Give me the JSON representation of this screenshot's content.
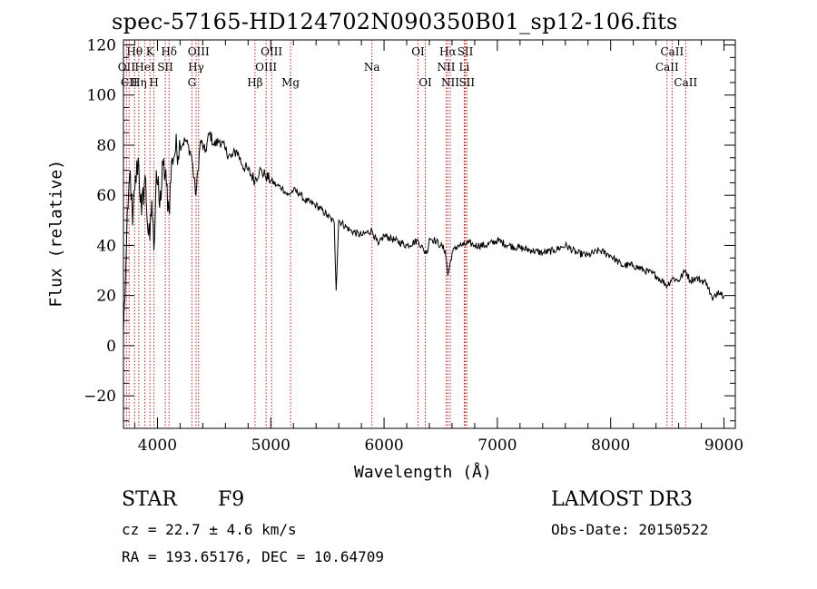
{
  "chart_data": {
    "type": "line",
    "title": "spec-57165-HD124702N090350B01_sp12-106.fits",
    "xlabel": "Wavelength (Å)",
    "ylabel": "Flux (relative)",
    "xlim": [
      3700,
      9100
    ],
    "ylim": [
      -33,
      122
    ],
    "xticks": [
      4000,
      5000,
      6000,
      7000,
      8000,
      9000
    ],
    "xtick_labels": [
      "4000",
      "5000",
      "6000",
      "7000",
      "8000",
      "9000"
    ],
    "yticks": [
      -20,
      0,
      20,
      40,
      60,
      80,
      100,
      120
    ],
    "ytick_labels": [
      "−20",
      "0",
      "20",
      "40",
      "60",
      "80",
      "100",
      "120"
    ],
    "series": [
      {
        "name": "flux",
        "color": "#000000",
        "x": [
          3700,
          3720,
          3740,
          3760,
          3780,
          3800,
          3830,
          3860,
          3890,
          3920,
          3933,
          3950,
          3968,
          3990,
          4020,
          4050,
          4080,
          4101,
          4130,
          4160,
          4200,
          4250,
          4300,
          4340,
          4380,
          4420,
          4460,
          4500,
          4550,
          4600,
          4650,
          4700,
          4750,
          4800,
          4861,
          4900,
          4950,
          5000,
          5050,
          5100,
          5150,
          5200,
          5250,
          5300,
          5400,
          5500,
          5560,
          5577,
          5600,
          5700,
          5800,
          5893,
          5950,
          6000,
          6100,
          6200,
          6300,
          6350,
          6380,
          6400,
          6450,
          6500,
          6540,
          6563,
          6600,
          6650,
          6700,
          6750,
          6800,
          6900,
          7000,
          7100,
          7200,
          7300,
          7400,
          7500,
          7600,
          7700,
          7800,
          7900,
          8000,
          8050,
          8100,
          8200,
          8300,
          8400,
          8450,
          8500,
          8542,
          8600,
          8662,
          8700,
          8750,
          8800,
          8850,
          8900,
          8950,
          9000
        ],
        "y": [
          5,
          30,
          55,
          70,
          48,
          62,
          75,
          52,
          68,
          44,
          42,
          58,
          38,
          70,
          55,
          72,
          64,
          54,
          75,
          78,
          80,
          82,
          76,
          60,
          82,
          77,
          85,
          80,
          82,
          78,
          75,
          78,
          72,
          70,
          66,
          70,
          68,
          66,
          64,
          63,
          60,
          62,
          61,
          58,
          56,
          52,
          49,
          22,
          50,
          46,
          44,
          46,
          40,
          44,
          42,
          40,
          42,
          38,
          37,
          43,
          42,
          40,
          38,
          28,
          37,
          40,
          40,
          41,
          40,
          40,
          42,
          40,
          39,
          38,
          37,
          38,
          40,
          37,
          36,
          38,
          36,
          34,
          32,
          32,
          30,
          28,
          26,
          24,
          27,
          26,
          30,
          26,
          27,
          26,
          25,
          18,
          22,
          20
        ]
      }
    ],
    "lines": [
      {
        "name": "Hθ",
        "x": 3798,
        "row": 1
      },
      {
        "name": "Hη",
        "x": 3835,
        "row": 3
      },
      {
        "name": "OII",
        "x": 3727,
        "row": 2
      },
      {
        "name": "CII",
        "x": 3750,
        "row": 3
      },
      {
        "name": "K",
        "x": 3934,
        "row": 1
      },
      {
        "name": "HeI",
        "x": 3889,
        "row": 2
      },
      {
        "name": "H",
        "x": 3969,
        "row": 3
      },
      {
        "name": "SII",
        "x": 4069,
        "row": 2
      },
      {
        "name": "Hδ",
        "x": 4102,
        "row": 1
      },
      {
        "name": "OIII",
        "x": 4363,
        "row": 1
      },
      {
        "name": "Hγ",
        "x": 4341,
        "row": 2
      },
      {
        "name": "G",
        "x": 4304,
        "row": 3
      },
      {
        "name": "Hβ",
        "x": 4861,
        "row": 3
      },
      {
        "name": "OIII",
        "x": 5007,
        "row": 1
      },
      {
        "name": "OIII",
        "x": 4959,
        "row": 2
      },
      {
        "name": "Mg",
        "x": 5175,
        "row": 3
      },
      {
        "name": "Na",
        "x": 5893,
        "row": 2
      },
      {
        "name": "OI",
        "x": 6300,
        "row": 1
      },
      {
        "name": "OI",
        "x": 6364,
        "row": 3
      },
      {
        "name": "Hα",
        "x": 6563,
        "row": 1
      },
      {
        "name": "NII",
        "x": 6548,
        "row": 2
      },
      {
        "name": "NII",
        "x": 6584,
        "row": 3
      },
      {
        "name": "SII",
        "x": 6717,
        "row": 1
      },
      {
        "name": "Li",
        "x": 6708,
        "row": 2
      },
      {
        "name": "SII",
        "x": 6731,
        "row": 3
      },
      {
        "name": "CaII",
        "x": 8542,
        "row": 1
      },
      {
        "name": "CaII",
        "x": 8498,
        "row": 2
      },
      {
        "name": "CaII",
        "x": 8662,
        "row": 3
      }
    ],
    "line_color": "#b22222",
    "grid": false,
    "legend": "none"
  },
  "info": {
    "class": "STAR",
    "subclass": "F9",
    "survey": "LAMOST DR3",
    "cz": "cz = 22.7 ± 4.6 km/s",
    "obs_date": "Obs-Date: 20150522",
    "radec": "RA = 193.65176, DEC =  10.64709"
  }
}
